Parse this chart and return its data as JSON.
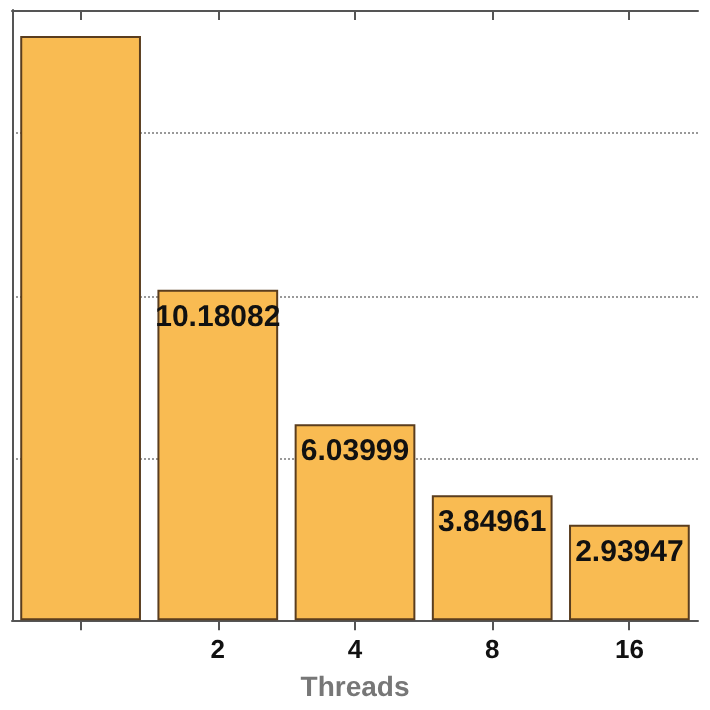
{
  "chart_data": {
    "type": "bar",
    "xlabel": "Threads",
    "categories": [
      null,
      "2",
      "4",
      "8",
      "16"
    ],
    "values": [
      18,
      10.18082,
      6.03999,
      3.84961,
      2.93947
    ],
    "value_labels": [
      null,
      "10.18082",
      "6.03999",
      "3.84961",
      "2.93947"
    ],
    "color": "#f9bb52",
    "ylim": [
      0,
      18.8
    ],
    "yticks": [
      {
        "value": 5,
        "label": null
      },
      {
        "value": 10,
        "label": null
      },
      {
        "value": 15,
        "label": null
      }
    ],
    "grid": "y",
    "tick_labels": "x"
  }
}
